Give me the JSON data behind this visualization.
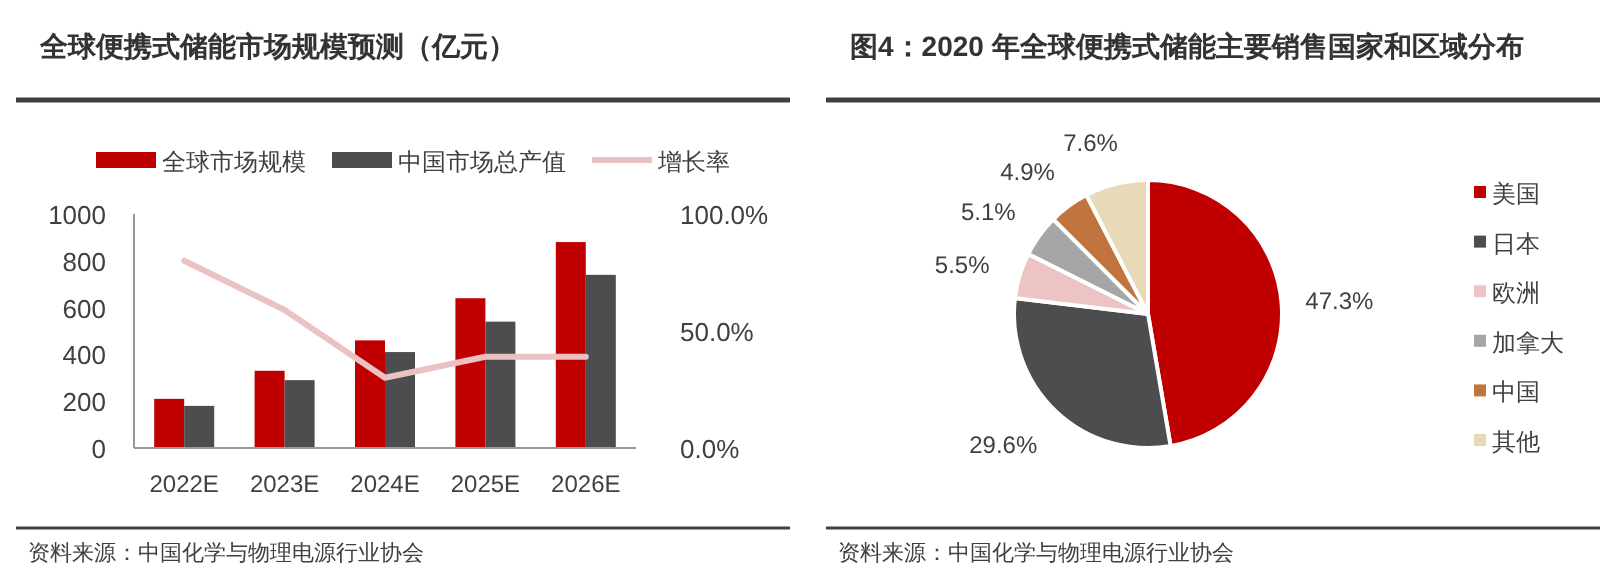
{
  "chart_data": [
    {
      "type": "bar",
      "title": "全球便携式储能市场规模预测（亿元）",
      "categories": [
        "2022E",
        "2023E",
        "2024E",
        "2025E",
        "2026E"
      ],
      "series": [
        {
          "name": "全球市场规模",
          "color": "#c00000",
          "values": [
            210,
            330,
            460,
            640,
            880
          ]
        },
        {
          "name": "中国市场总产值",
          "color": "#4d4d4f",
          "values": [
            180,
            290,
            410,
            540,
            740
          ]
        },
        {
          "name": "增长率",
          "type": "line",
          "axis": "y2",
          "color": "#ebc1c1",
          "values": [
            80,
            59,
            30,
            39,
            39
          ]
        }
      ],
      "ylim": [
        0,
        1000
      ],
      "yticks": [
        0,
        200,
        400,
        600,
        800,
        1000
      ],
      "y2lim": [
        0,
        100
      ],
      "y2ticks": [
        {
          "value": 0,
          "label": "0.0%"
        },
        {
          "value": 50,
          "label": "50.0%"
        },
        {
          "value": 100,
          "label": "100.0%"
        }
      ],
      "legend": "top",
      "grid": false,
      "marker": "none",
      "annotations": [
        "资料来源：中国化学与物理电源行业协会"
      ]
    },
    {
      "type": "pie",
      "title": "图4：2020 年全球便携式储能主要销售国家和区域分布",
      "categories": [
        "美国",
        "日本",
        "欧洲",
        "加拿大",
        "中国",
        "其他"
      ],
      "values": [
        47.3,
        29.6,
        5.5,
        5.1,
        4.9,
        7.6
      ],
      "colors": [
        "#c00000",
        "#4d4d4f",
        "#ecc4c4",
        "#a6a6a6",
        "#c0753e",
        "#e8d9b8"
      ],
      "value_labels": [
        "47.3%",
        "29.6%",
        "5.5%",
        "5.1%",
        "4.9%",
        "7.6%"
      ],
      "legend": "right",
      "annotations": [
        "资料来源：中国化学与物理电源行业协会"
      ]
    }
  ]
}
